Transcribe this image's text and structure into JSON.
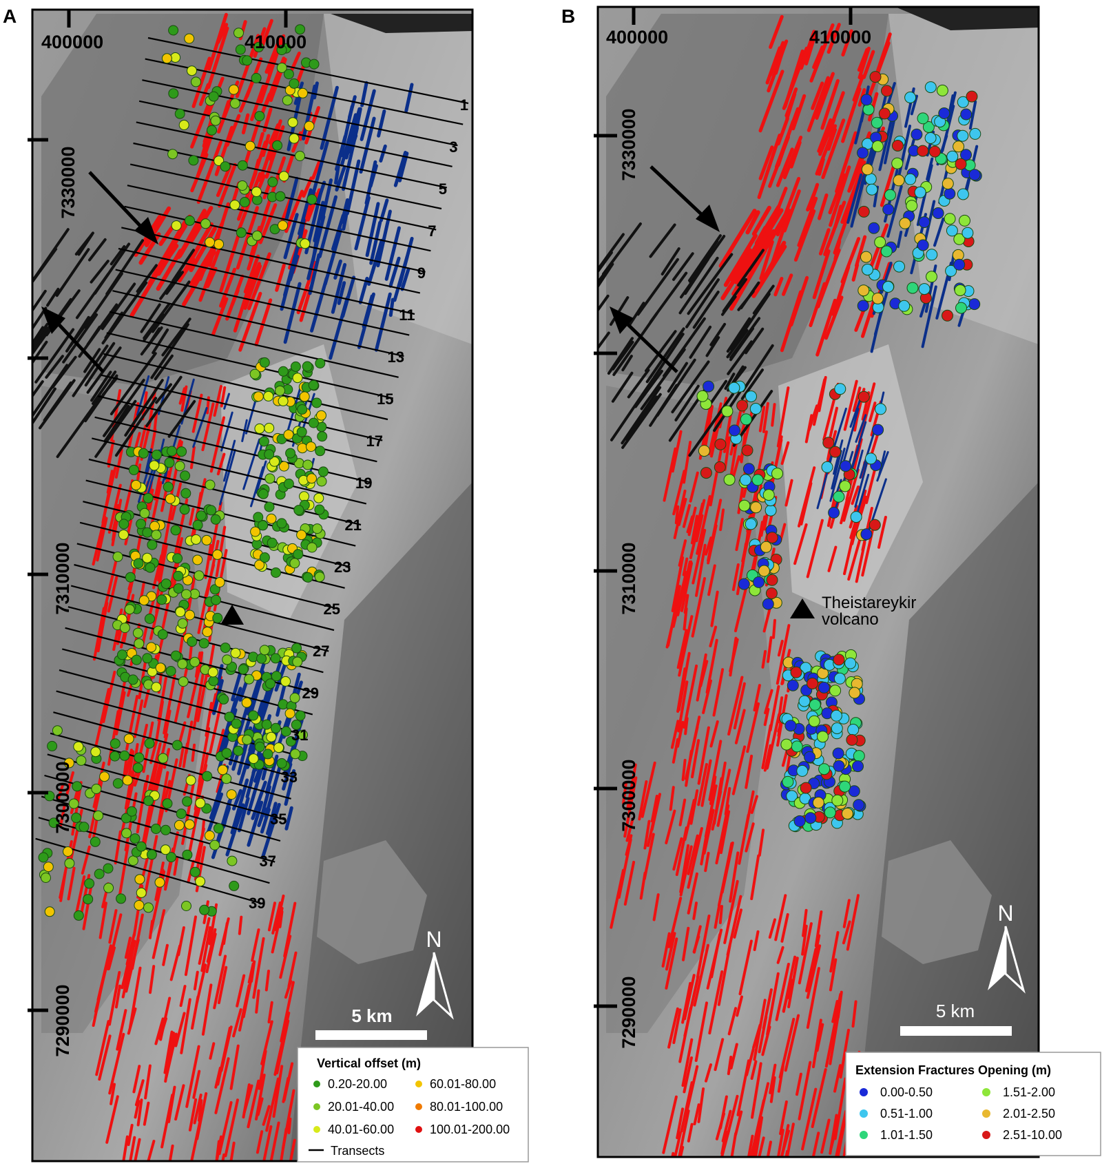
{
  "panels": [
    {
      "id": "A",
      "label": "A",
      "easting_labels": [
        "400000",
        "410000"
      ],
      "northing_labels": [
        "7330000",
        "7310000",
        "7300000",
        "7290000"
      ],
      "transect_labels": [
        "1",
        "3",
        "5",
        "7",
        "9",
        "11",
        "13",
        "15",
        "17",
        "19",
        "21",
        "23",
        "25",
        "27",
        "29",
        "31",
        "33",
        "35",
        "37",
        "39"
      ],
      "scale_label": "5 km",
      "north_label": "N",
      "legend": {
        "title": "Vertical offset (m)",
        "items": [
          {
            "label": "0.20-20.00",
            "color": "#2e9a1a"
          },
          {
            "label": "60.01-80.00",
            "color": "#f2c400"
          },
          {
            "label": "20.01-40.00",
            "color": "#7cc623"
          },
          {
            "label": "80.01-100.00",
            "color": "#f07a00"
          },
          {
            "label": "40.01-60.00",
            "color": "#d8ea1a"
          },
          {
            "label": "100.01-200.00",
            "color": "#e01010"
          }
        ],
        "line_label": "Transects"
      }
    },
    {
      "id": "B",
      "label": "B",
      "easting_labels": [
        "400000",
        "410000"
      ],
      "northing_labels": [
        "7330000",
        "7310000",
        "7300000",
        "7290000"
      ],
      "volcano_label_1": "Theistareykir",
      "volcano_label_2": "volcano",
      "scale_label": "5 km",
      "north_label": "N",
      "legend": {
        "title": "Extension Fractures Opening (m)",
        "items": [
          {
            "label": "0.00-0.50",
            "color": "#1a2ad8"
          },
          {
            "label": "1.51-2.00",
            "color": "#8ee63a"
          },
          {
            "label": "0.51-1.00",
            "color": "#3ec6ee"
          },
          {
            "label": "2.01-2.50",
            "color": "#e8b830"
          },
          {
            "label": "1.01-1.50",
            "color": "#2ed67a"
          },
          {
            "label": "2.51-10.00",
            "color": "#d81818"
          }
        ]
      }
    }
  ],
  "colors": {
    "fault_red": "#ee1111",
    "fracture_blue": "#0b2f8a",
    "fault_black": "#111111",
    "transect": "#000000"
  }
}
